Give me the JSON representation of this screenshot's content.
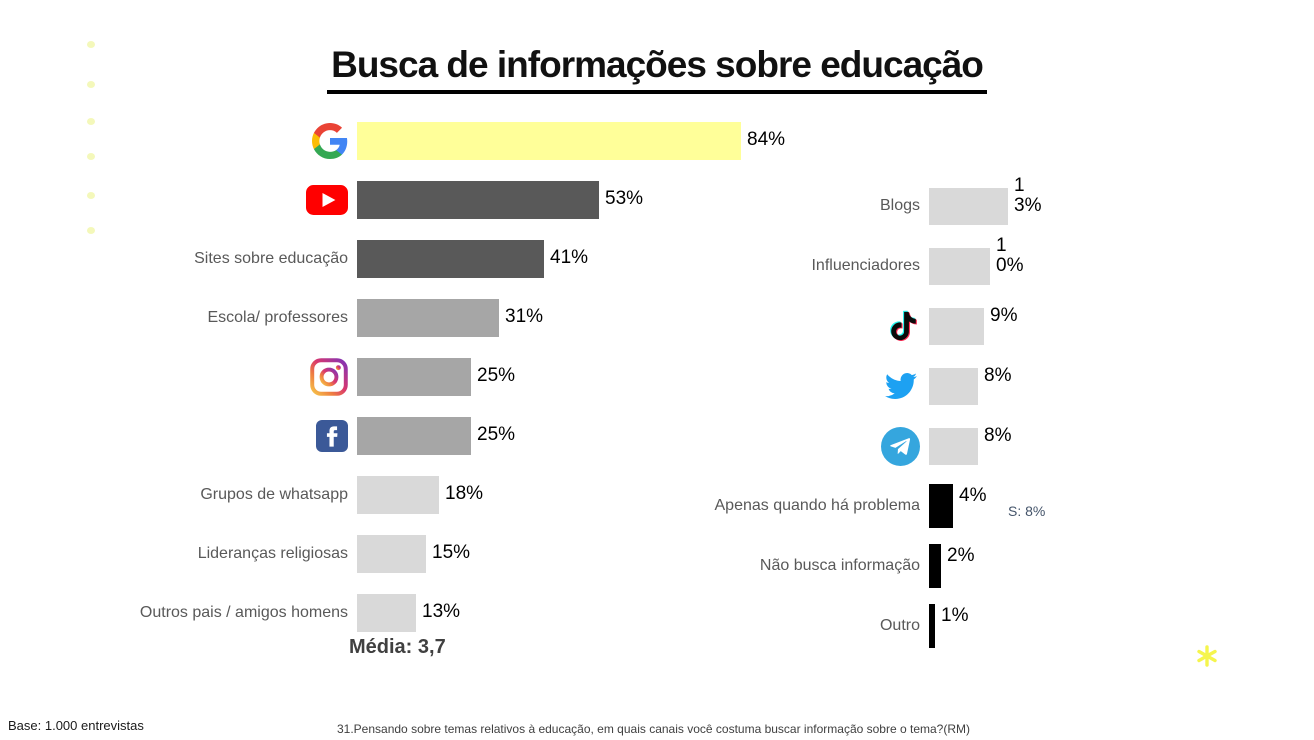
{
  "header": {
    "title": "Busca de informações sobre educação"
  },
  "chart_data": [
    {
      "type": "bar",
      "orientation": "horizontal",
      "title": "Busca de informações sobre educação",
      "categories": [
        "Google",
        "YouTube",
        "Sites sobre educação",
        "Escola/ professores",
        "Instagram",
        "Facebook",
        "Grupos de whatsapp",
        "Lideranças religiosas",
        "Outros pais / amigos homens"
      ],
      "values": [
        84,
        53,
        41,
        31,
        25,
        25,
        18,
        15,
        13
      ],
      "value_labels": [
        "84%",
        "53%",
        "41%",
        "31%",
        "25%",
        "25%",
        "18%",
        "15%",
        "13%"
      ],
      "icons": [
        "google-icon",
        "youtube-icon",
        null,
        null,
        "instagram-icon",
        "facebook-icon",
        null,
        null,
        null
      ],
      "bar_colors": [
        "#FFFF99",
        "#595959",
        "#595959",
        "#A6A6A6",
        "#A6A6A6",
        "#A6A6A6",
        "#D9D9D9",
        "#D9D9D9",
        "#D9D9D9"
      ],
      "xlim": [
        0,
        100
      ],
      "grid": false,
      "footnote": "Média: 3,7"
    },
    {
      "type": "bar",
      "orientation": "horizontal",
      "title": "Busca de informações sobre educação (canais secundários)",
      "categories": [
        "Blogs",
        "Influenciadores",
        "TikTok",
        "Twitter",
        "Telegram",
        "Apenas quando há problema",
        "Não busca informação",
        "Outro"
      ],
      "values": [
        13,
        10,
        9,
        8,
        8,
        4,
        2,
        1
      ],
      "value_labels": [
        "13%",
        "10%",
        "9%",
        "8%",
        "8%",
        "4%",
        "2%",
        "1%"
      ],
      "icons": [
        null,
        null,
        "tiktok-icon",
        "twitter-icon",
        "telegram-icon",
        null,
        null,
        null
      ],
      "bar_colors": [
        "#D9D9D9",
        "#D9D9D9",
        "#D9D9D9",
        "#D9D9D9",
        "#D9D9D9",
        "#000000",
        "#000000",
        "#000000"
      ],
      "xlim": [
        0,
        100
      ],
      "grid": false,
      "annotation": {
        "text": "S: 8%",
        "row_index": 5
      }
    }
  ],
  "footer": {
    "base": "Base: 1.000 entrevistas",
    "question": "31.Pensando sobre temas relativos à educação, em quais canais você costuma buscar informação sobre o tema?(RM)"
  },
  "colors": {
    "highlight_yellow": "#FFFF99",
    "dark_gray": "#595959",
    "mid_gray": "#A6A6A6",
    "light_gray": "#D9D9D9",
    "black": "#000000",
    "annotation_blue": "#44546A"
  }
}
